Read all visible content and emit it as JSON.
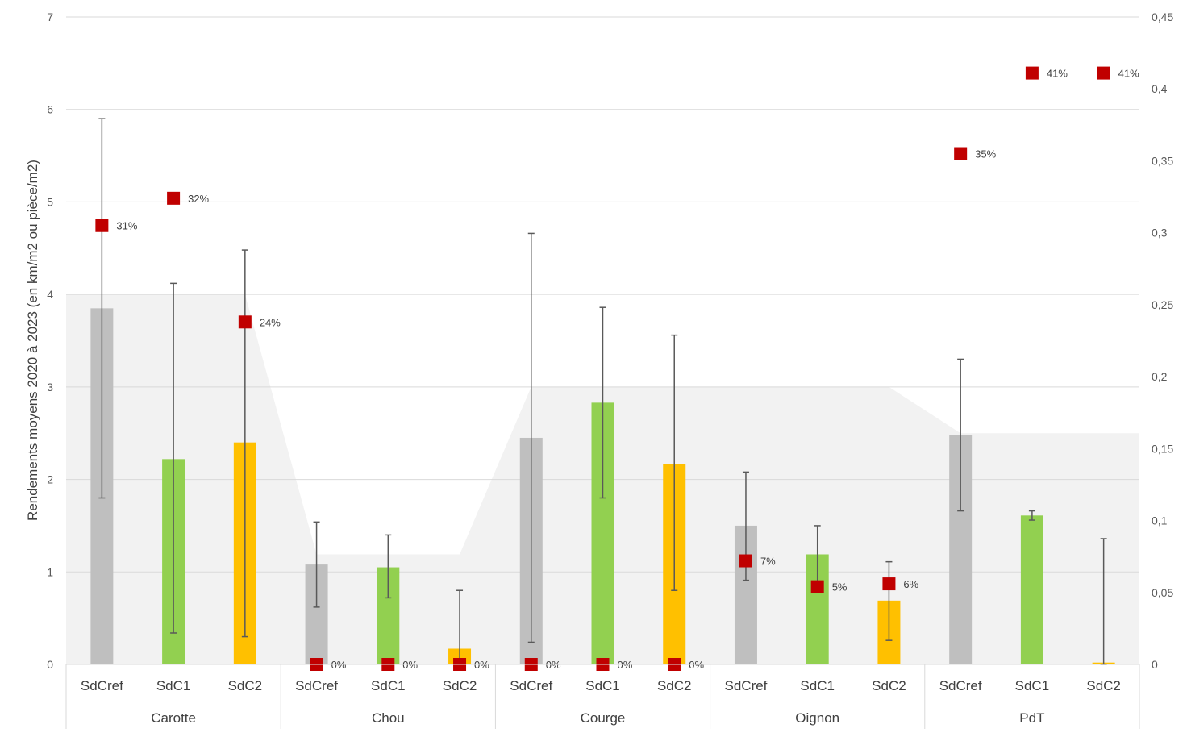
{
  "chart_data": {
    "type": "bar",
    "title": "",
    "ylabel": "Rendements moyens 2020 à 2023 (en km/m2 ou pièce/m2)",
    "ylim": [
      0,
      7
    ],
    "y_ticks": [
      "0",
      "1",
      "2",
      "3",
      "4",
      "5",
      "6",
      "7"
    ],
    "y2lim": [
      0,
      0.45
    ],
    "y2_ticks": [
      "0",
      "0,05",
      "0,1",
      "0,15",
      "0,2",
      "0,25",
      "0,3",
      "0,35",
      "0,4",
      "0,45"
    ],
    "grid": true,
    "groups": [
      "Carotte",
      "Chou",
      "Courge",
      "Oignon",
      "PdT"
    ],
    "categories": [
      "SdCref",
      "SdC1",
      "SdC2"
    ],
    "colors": {
      "SdCref": "#bfbfbf",
      "SdC1": "#92d050",
      "SdC2": "#ffc000",
      "marker": "#c00000",
      "area": "#f2f2f2",
      "grid": "#d9d9d9",
      "error_bar": "#595959"
    },
    "bars": [
      {
        "group": "Carotte",
        "category": "SdCref",
        "value": 3.85,
        "err_low": 1.8,
        "err_high": 5.9,
        "marker": 0.305,
        "label": "31%"
      },
      {
        "group": "Carotte",
        "category": "SdC1",
        "value": 2.22,
        "err_low": 0.34,
        "err_high": 4.12,
        "marker": 0.324,
        "label": "32%"
      },
      {
        "group": "Carotte",
        "category": "SdC2",
        "value": 2.4,
        "err_low": 0.3,
        "err_high": 4.48,
        "marker": 0.238,
        "label": "24%"
      },
      {
        "group": "Chou",
        "category": "SdCref",
        "value": 1.08,
        "err_low": 0.62,
        "err_high": 1.54,
        "marker": 0,
        "label": "0%"
      },
      {
        "group": "Chou",
        "category": "SdC1",
        "value": 1.05,
        "err_low": 0.72,
        "err_high": 1.4,
        "marker": 0,
        "label": "0%"
      },
      {
        "group": "Chou",
        "category": "SdC2",
        "value": 0.17,
        "err_low": 0,
        "err_high": 0.8,
        "marker": 0,
        "label": "0%"
      },
      {
        "group": "Courge",
        "category": "SdCref",
        "value": 2.45,
        "err_low": 0.24,
        "err_high": 4.66,
        "marker": 0,
        "label": "0%"
      },
      {
        "group": "Courge",
        "category": "SdC1",
        "value": 2.83,
        "err_low": 1.8,
        "err_high": 3.86,
        "marker": 0,
        "label": "0%"
      },
      {
        "group": "Courge",
        "category": "SdC2",
        "value": 2.17,
        "err_low": 0.8,
        "err_high": 3.56,
        "marker": 0,
        "label": "0%"
      },
      {
        "group": "Oignon",
        "category": "SdCref",
        "value": 1.5,
        "err_low": 0.91,
        "err_high": 2.08,
        "marker": 0.072,
        "label": "7%"
      },
      {
        "group": "Oignon",
        "category": "SdC1",
        "value": 1.19,
        "err_low": 0.9,
        "err_high": 1.5,
        "marker": 0.054,
        "label": "5%"
      },
      {
        "group": "Oignon",
        "category": "SdC2",
        "value": 0.69,
        "err_low": 0.26,
        "err_high": 1.11,
        "marker": 0.056,
        "label": "6%"
      },
      {
        "group": "PdT",
        "category": "SdCref",
        "value": 2.48,
        "err_low": 1.66,
        "err_high": 3.3,
        "marker": 0.355,
        "label": "35%"
      },
      {
        "group": "PdT",
        "category": "SdC1",
        "value": 1.61,
        "err_low": 1.56,
        "err_high": 1.66,
        "marker": 0.411,
        "label": "41%"
      },
      {
        "group": "PdT",
        "category": "SdC2",
        "value": 0.02,
        "err_low": 0,
        "err_high": 1.36,
        "marker": 0.411,
        "label": "41%"
      }
    ],
    "area_values": [
      4.0,
      4.0,
      4.0,
      1.19,
      1.19,
      1.19,
      3.0,
      3.0,
      3.0,
      3.0,
      3.0,
      3.0,
      2.5,
      2.5,
      2.5
    ]
  }
}
